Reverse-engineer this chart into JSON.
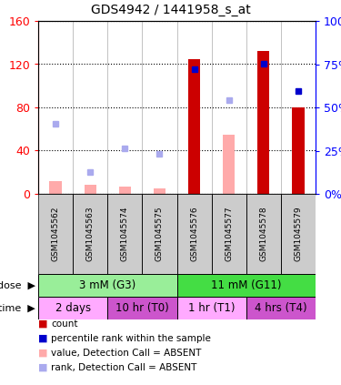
{
  "title": "GDS4942 / 1441958_s_at",
  "samples": [
    "GSM1045562",
    "GSM1045563",
    "GSM1045574",
    "GSM1045575",
    "GSM1045576",
    "GSM1045577",
    "GSM1045578",
    "GSM1045579"
  ],
  "count_values": [
    null,
    null,
    null,
    null,
    125,
    null,
    132,
    80
  ],
  "count_absent_values": [
    12,
    8,
    7,
    5,
    null,
    55,
    null,
    null
  ],
  "rank_values_left": [
    null,
    null,
    null,
    null,
    115,
    null,
    120,
    95
  ],
  "rank_absent_values_left": [
    65,
    20,
    42,
    37,
    null,
    87,
    null,
    null
  ],
  "left_yticks": [
    0,
    40,
    80,
    120,
    160
  ],
  "right_yticks": [
    0,
    25,
    50,
    75,
    100
  ],
  "ylim_left": [
    0,
    160
  ],
  "dose_groups": [
    {
      "label": "3 mM (G3)",
      "start": 0,
      "end": 4,
      "color": "#99ee99"
    },
    {
      "label": "11 mM (G11)",
      "start": 4,
      "end": 8,
      "color": "#44dd44"
    }
  ],
  "time_groups": [
    {
      "label": "2 days",
      "start": 0,
      "end": 2,
      "color": "#ffaaff"
    },
    {
      "label": "10 hr (T0)",
      "start": 2,
      "end": 4,
      "color": "#cc55cc"
    },
    {
      "label": "1 hr (T1)",
      "start": 4,
      "end": 6,
      "color": "#ffaaff"
    },
    {
      "label": "4 hrs (T4)",
      "start": 6,
      "end": 8,
      "color": "#cc55cc"
    }
  ],
  "bar_color_present": "#cc0000",
  "bar_color_absent": "#ffaaaa",
  "rank_color_present": "#0000cc",
  "rank_color_absent": "#aaaaee",
  "bg_color": "#ffffff",
  "bar_width": 0.35,
  "marker_size": 5
}
